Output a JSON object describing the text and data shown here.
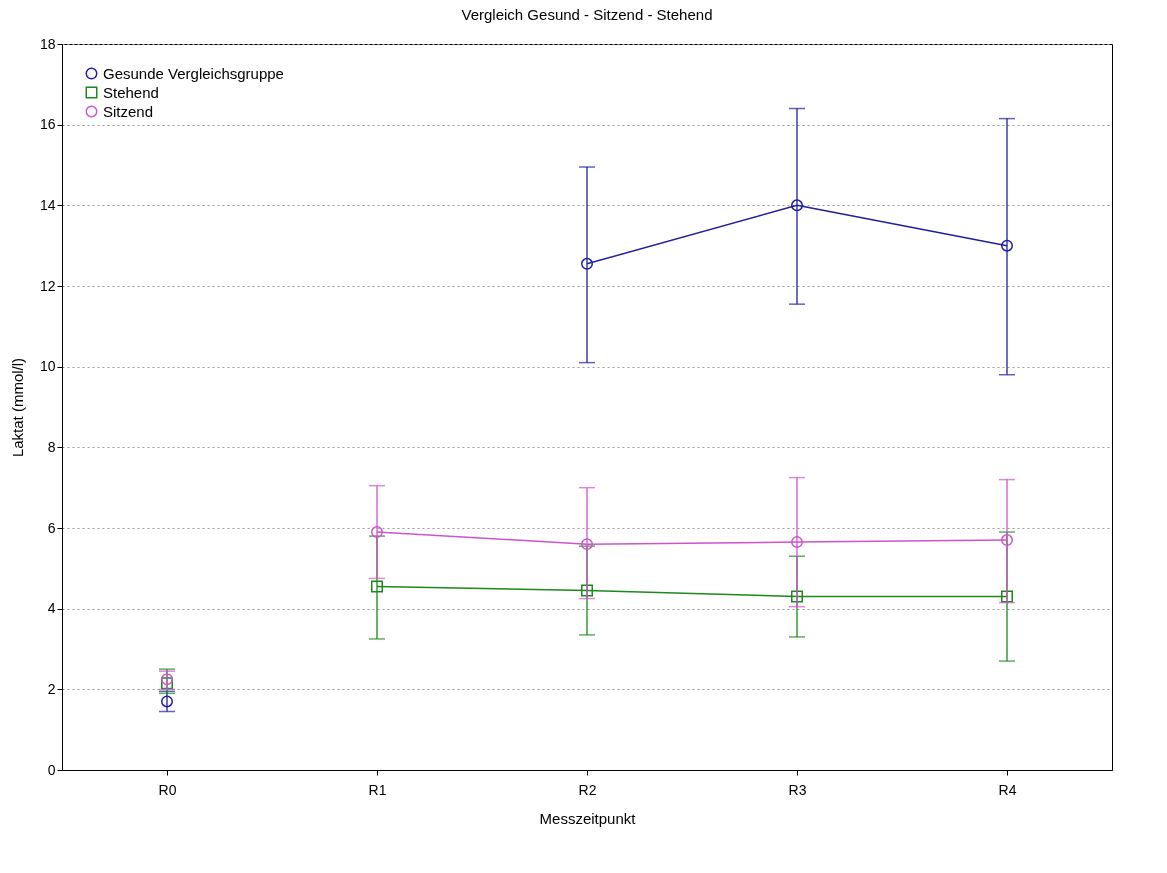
{
  "chart_data": {
    "type": "line",
    "title": "Vergleich Gesund - Sitzend - Stehend",
    "xlabel": "Messzeitpunkt",
    "ylabel": "Laktat (mmol/l)",
    "categories": [
      "R0",
      "R1",
      "R2",
      "R3",
      "R4"
    ],
    "ylim": [
      0,
      18
    ],
    "yticks": [
      0,
      2,
      4,
      6,
      8,
      10,
      12,
      14,
      16,
      18
    ],
    "grid": "y",
    "legend": "top left",
    "series": [
      {
        "name": "Gesunde Vergleichsgruppe",
        "color": "#1f1f9f",
        "marker": "circle",
        "values": [
          null,
          null,
          12.55,
          14.0,
          13.0
        ],
        "errors": [
          null,
          null,
          [
            10.1,
            14.95
          ],
          [
            11.55,
            16.4
          ],
          [
            9.8,
            16.15
          ]
        ]
      },
      {
        "name": "Stehend",
        "color": "#1a8a1a",
        "marker": "square",
        "values": [
          null,
          4.55,
          4.45,
          4.3,
          4.3
        ],
        "errors": [
          null,
          [
            3.25,
            5.8
          ],
          [
            3.35,
            5.55
          ],
          [
            3.3,
            5.3
          ],
          [
            2.7,
            5.9
          ]
        ]
      },
      {
        "name": "Sitzend",
        "color": "#cc55cc",
        "marker": "circle",
        "values": [
          null,
          5.9,
          5.6,
          5.65,
          5.7
        ],
        "errors": [
          null,
          [
            4.75,
            7.05
          ],
          [
            4.25,
            7.0
          ],
          [
            4.05,
            7.25
          ],
          [
            4.15,
            7.2
          ]
        ]
      },
      {
        "type": "scatter",
        "color": "#1f1f9f",
        "marker": "circle",
        "x": [
          "R0"
        ],
        "values": [
          1.7
        ],
        "errors": [
          [
            1.45,
            1.95
          ]
        ]
      },
      {
        "type": "scatter",
        "color": "#1a8a1a",
        "marker": "square",
        "x": [
          "R0"
        ],
        "values": [
          2.15
        ],
        "errors": [
          [
            1.9,
            2.5
          ]
        ]
      },
      {
        "type": "scatter",
        "color": "#cc55cc",
        "marker": "circle",
        "x": [
          "R0"
        ],
        "values": [
          2.25
        ],
        "errors": [
          [
            2.0,
            2.45
          ]
        ]
      }
    ]
  }
}
